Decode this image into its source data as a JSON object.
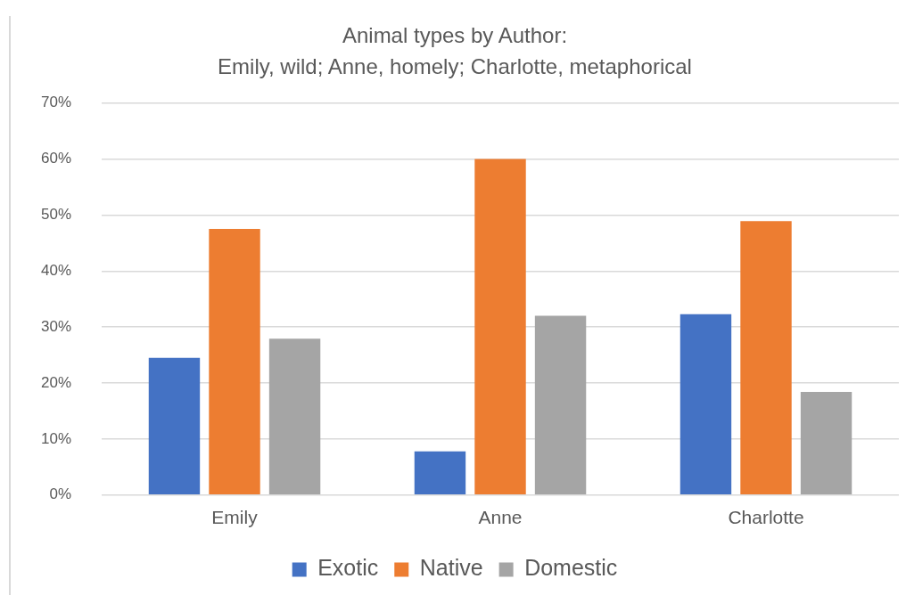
{
  "chart_data": {
    "type": "bar",
    "title": "Animal types by Author:",
    "subtitle": "Emily, wild; Anne, homely; Charlotte, metaphorical",
    "categories": [
      "Emily",
      "Anne",
      "Charlotte"
    ],
    "series": [
      {
        "name": "Exotic",
        "color": "#4472c4",
        "values": [
          24.5,
          7.8,
          32.3
        ]
      },
      {
        "name": "Native",
        "color": "#ed7d31",
        "values": [
          47.5,
          60,
          48.9
        ]
      },
      {
        "name": "Domestic",
        "color": "#a5a5a5",
        "values": [
          27.9,
          32,
          18.4
        ]
      }
    ],
    "ylim": [
      0,
      70
    ],
    "yticks": [
      {
        "value": 0,
        "label": "0%"
      },
      {
        "value": 10,
        "label": "10%"
      },
      {
        "value": 20,
        "label": "20%"
      },
      {
        "value": 30,
        "label": "30%"
      },
      {
        "value": 40,
        "label": "40%"
      },
      {
        "value": 50,
        "label": "50%"
      },
      {
        "value": 60,
        "label": "60%"
      },
      {
        "value": 70,
        "label": "70%"
      }
    ],
    "grid": "y",
    "legend": "bottom"
  }
}
